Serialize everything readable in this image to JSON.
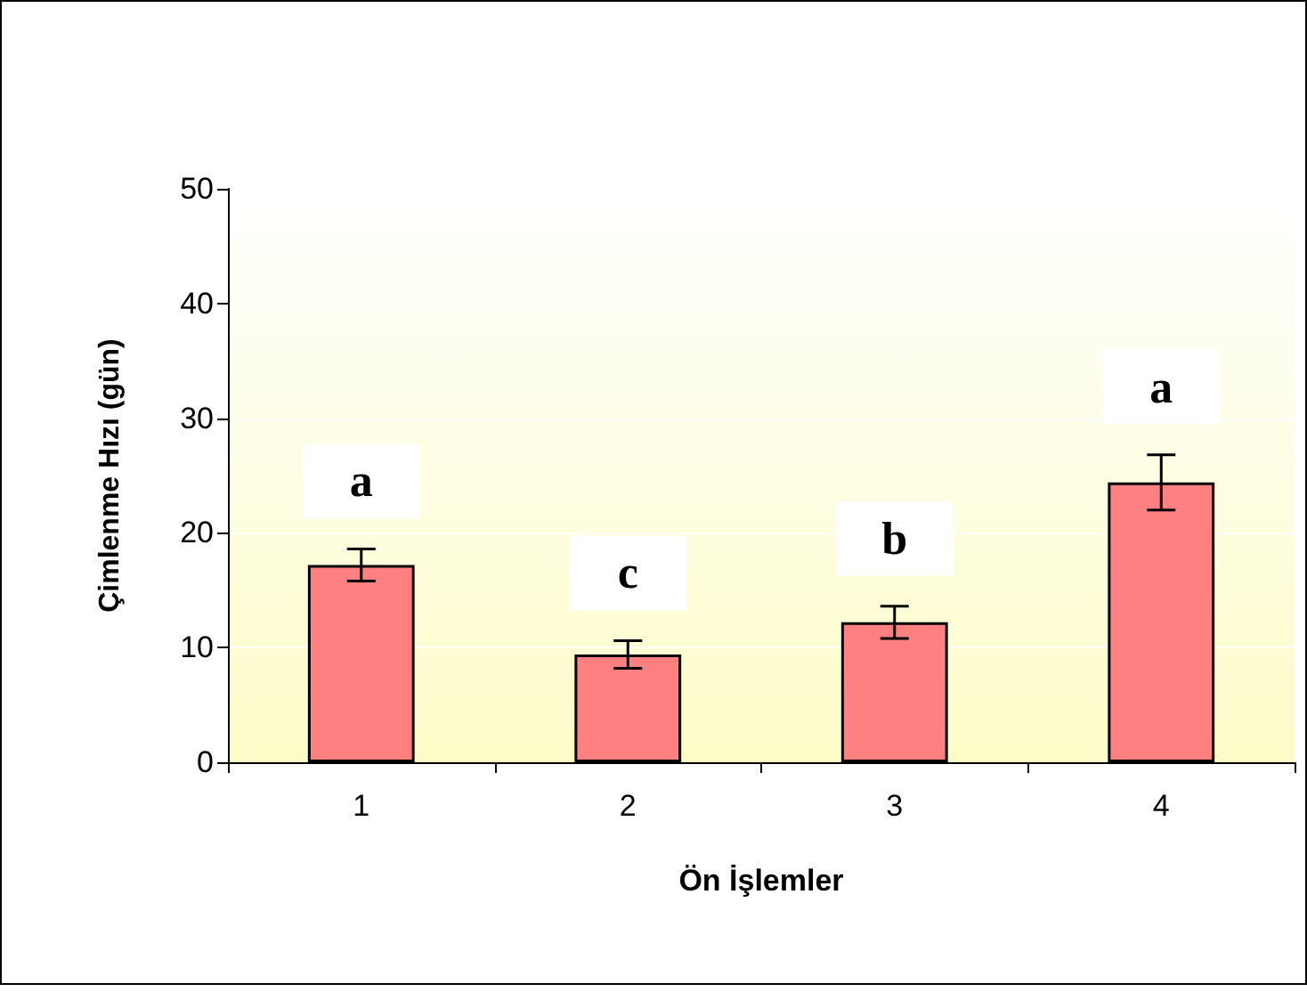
{
  "chart_data": {
    "type": "bar",
    "xlabel": "Ön İşlemler",
    "ylabel": "Çimlenme Hızı (gün)",
    "categories": [
      "1",
      "2",
      "3",
      "4"
    ],
    "values": [
      17.2,
      9.4,
      12.2,
      24.4
    ],
    "errors": [
      1.4,
      1.2,
      1.4,
      2.4
    ],
    "color": "#ff8080",
    "ylim": [
      0,
      50
    ],
    "yticks": [
      0,
      10,
      20,
      30,
      40,
      50
    ],
    "grid": "y",
    "annotations": [
      "a",
      "c",
      "b",
      "a"
    ]
  }
}
